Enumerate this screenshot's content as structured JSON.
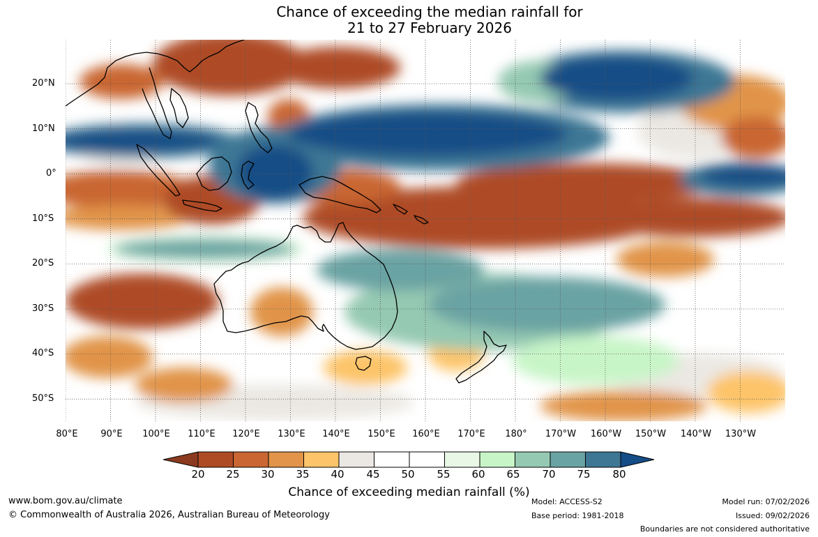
{
  "title": {
    "line1": "Chance of exceeding the median rainfall for",
    "line2": "21 to 27 February 2026"
  },
  "map": {
    "lat_labels": [
      "20°N",
      "10°N",
      "0°",
      "10°S",
      "20°S",
      "30°S",
      "40°S",
      "50°S"
    ],
    "lon_labels": [
      "80°E",
      "90°E",
      "100°E",
      "110°E",
      "120°E",
      "130°E",
      "140°E",
      "150°E",
      "160°E",
      "170°E",
      "180°",
      "170°W",
      "160°W",
      "150°W",
      "140°W",
      "130°W"
    ],
    "regions": [
      "australia-outline",
      "new-zealand-outline",
      "tasmania-outline",
      "maritime-continent-outline",
      "southeast-asia-outline"
    ]
  },
  "colorbar": {
    "ticks": [
      "20",
      "25",
      "30",
      "35",
      "40",
      "45",
      "50",
      "55",
      "60",
      "65",
      "70",
      "75",
      "80"
    ],
    "colors": [
      "#8b3a1f",
      "#ae4b25",
      "#c96632",
      "#e1944a",
      "#fdc469",
      "#ebe8e3",
      "#ffffff",
      "#ffffff",
      "#e9f7e6",
      "#c8f5c8",
      "#95c9b2",
      "#6aa3a3",
      "#3d7794",
      "#154d86"
    ],
    "label": "Chance of exceeding median rainfall (%)"
  },
  "footer": {
    "website": "www.bom.gov.au/climate",
    "copyright": "© Commonwealth of Australia 2026, Australian Bureau of Meteorology",
    "model": "Model: ACCESS-S2",
    "base_period": "Base period: 1981-2018",
    "model_run": "Model run: 07/02/2026",
    "issued": "Issued: 09/02/2026",
    "boundaries": "Boundaries are not considered authoritative"
  }
}
